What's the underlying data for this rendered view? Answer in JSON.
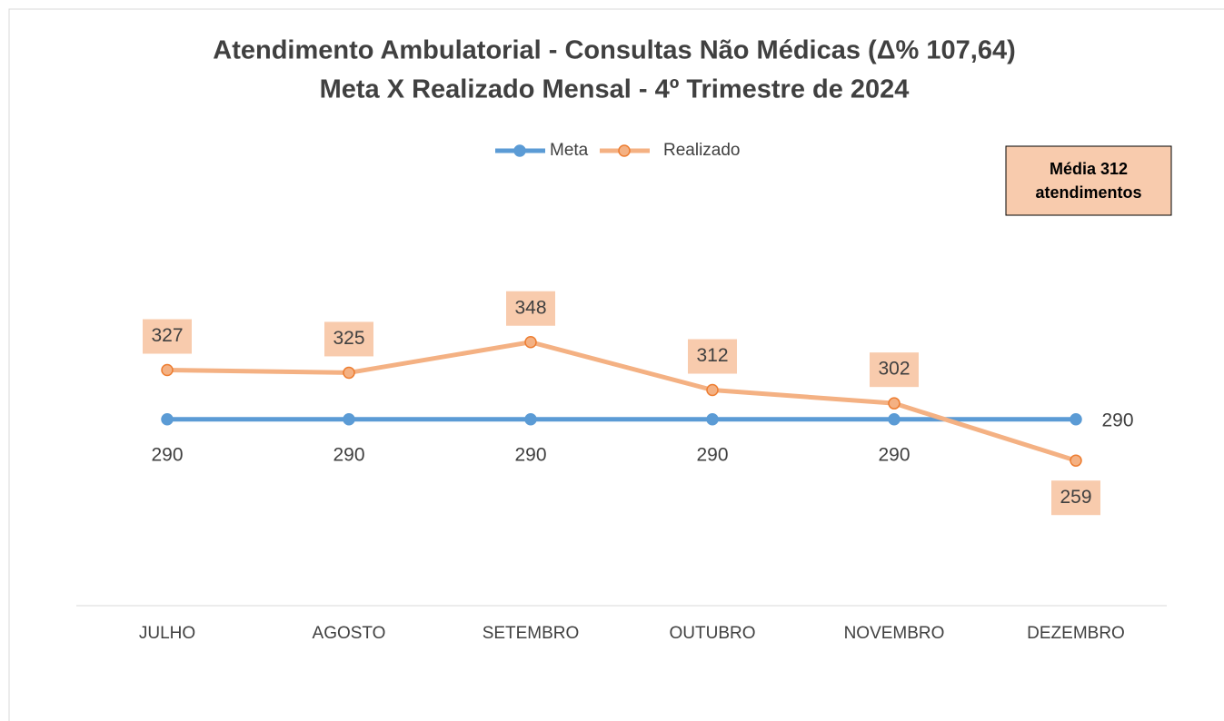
{
  "chart_data": {
    "type": "line",
    "title": "Atendimento Ambulatorial - Consultas Não Médicas (Δ% 107,64)",
    "subtitle": "Meta X Realizado Mensal - 4º Trimestre de 2024",
    "categories": [
      "JULHO",
      "AGOSTO",
      "SETEMBRO",
      "OUTUBRO",
      "NOVEMBRO",
      "DEZEMBRO"
    ],
    "series": [
      {
        "name": "Meta",
        "color": "#5b9bd5",
        "values": [
          290,
          290,
          290,
          290,
          290,
          290
        ]
      },
      {
        "name": "Realizado",
        "color": "#f4b183",
        "values": [
          327,
          325,
          348,
          312,
          302,
          259
        ]
      }
    ],
    "annotation": [
      "Média 312",
      "atendimentos"
    ],
    "ylim": [
      150,
      400
    ],
    "legend": "top"
  }
}
